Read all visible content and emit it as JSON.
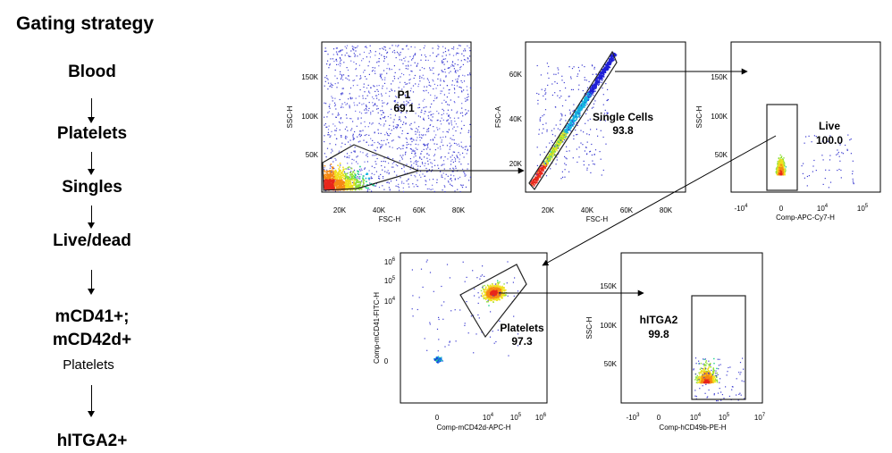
{
  "title": "Gating strategy",
  "steps": [
    "Blood",
    "Platelets",
    "Singles",
    "Live/dead",
    "mCD41+;",
    "mCD42d+",
    "Platelets",
    "hITGA2+"
  ],
  "plots": [
    {
      "id": "p1",
      "xlabel": "FSC-H",
      "ylabel": "SSC-H",
      "xticks": [
        "20K",
        "40K",
        "60K",
        "80K"
      ],
      "yticks": [
        "50K",
        "100K",
        "150K"
      ],
      "gate": "P1",
      "gate_value": "69.1"
    },
    {
      "id": "p2",
      "xlabel": "FSC-H",
      "ylabel": "FSC-A",
      "xticks": [
        "20K",
        "40K",
        "60K",
        "80K"
      ],
      "yticks": [
        "20K",
        "40K",
        "60K"
      ],
      "gate": "Single Cells",
      "gate_value": "93.8"
    },
    {
      "id": "p3",
      "xlabel": "Comp-APC-Cy7-H",
      "ylabel": "SSC-H",
      "xticks": [
        {
          "b": "-10",
          "e": "4"
        },
        {
          "b": "0",
          "e": ""
        },
        {
          "b": "10",
          "e": "4"
        },
        {
          "b": "10",
          "e": "5"
        }
      ],
      "yticks": [
        "50K",
        "100K",
        "150K"
      ],
      "gate": "Live",
      "gate_value": "100.0"
    },
    {
      "id": "p4",
      "xlabel": "Comp-mCD42d-APC-H",
      "ylabel": "Comp-mCD41-FITC-H",
      "xticks": [
        {
          "b": "0",
          "e": ""
        },
        {
          "b": "10",
          "e": "4"
        },
        {
          "b": "10",
          "e": "5"
        },
        {
          "b": "10",
          "e": "6"
        }
      ],
      "yticks": [
        {
          "b": "0",
          "e": ""
        },
        {
          "b": "10",
          "e": "4"
        },
        {
          "b": "10",
          "e": "5"
        },
        {
          "b": "10",
          "e": "6"
        }
      ],
      "gate": "Platelets",
      "gate_value": "97.3"
    },
    {
      "id": "p5",
      "xlabel": "Comp-hCD49b-PE-H",
      "ylabel": "SSC-H",
      "xticks": [
        {
          "b": "-10",
          "e": "3"
        },
        {
          "b": "10",
          "e": "4"
        },
        {
          "b": "10",
          "e": "5"
        },
        {
          "b": "10",
          "e": "7"
        }
      ],
      "xtick_zero": "0",
      "yticks": [
        "50K",
        "100K",
        "150K"
      ],
      "gate": "hITGA2",
      "gate_value": "99.8"
    }
  ]
}
